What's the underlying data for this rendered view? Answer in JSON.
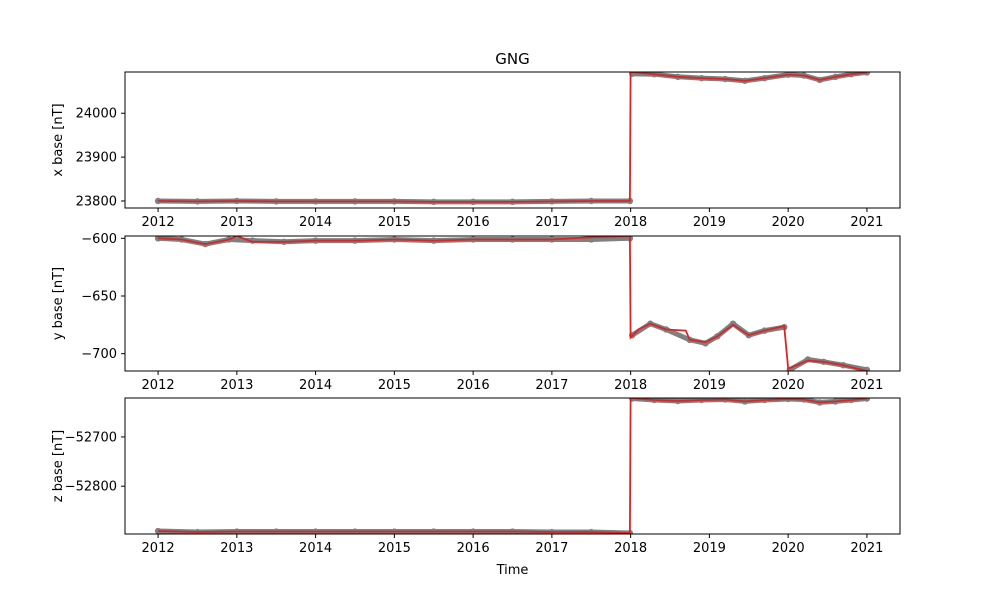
{
  "figure": {
    "title": "GNG",
    "xlabel": "Time"
  },
  "chart_data": [
    {
      "type": "line",
      "title": "GNG",
      "xlabel": "",
      "ylabel": "x base [nT]",
      "xlim": [
        2011.58,
        2021.42
      ],
      "ylim": [
        23784,
        24094
      ],
      "xticks": [
        "2012",
        "2013",
        "2014",
        "2015",
        "2016",
        "2017",
        "2018",
        "2019",
        "2020",
        "2021"
      ],
      "yticks": [
        23800,
        23900,
        24000
      ],
      "ytick_labels": [
        "23800",
        "23900",
        "24000"
      ],
      "colors": {
        "points": "#808080",
        "fit": "#d62728"
      },
      "series": [
        {
          "kind": "points",
          "x": [
            2012.0,
            2012.5,
            2013.0,
            2013.5,
            2014.0,
            2014.5,
            2015.0,
            2015.5,
            2016.0,
            2016.5,
            2017.0,
            2017.5,
            2017.99,
            2018.02,
            2018.3,
            2018.6,
            2018.9,
            2019.2,
            2019.45,
            2019.7,
            2020.0,
            2020.2,
            2020.4,
            2020.6,
            2020.8,
            2021.0
          ],
          "y": [
            23800,
            23799,
            23800,
            23799,
            23799,
            23799,
            23799,
            23798,
            23798,
            23798,
            23799,
            23800,
            23800,
            24090,
            24089,
            24083,
            24080,
            24078,
            24074,
            24080,
            24088,
            24086,
            24076,
            24083,
            24089,
            24093
          ]
        },
        {
          "kind": "fit",
          "x": [
            2012.0,
            2012.5,
            2013.0,
            2013.5,
            2014.0,
            2014.5,
            2015.0,
            2015.5,
            2016.0,
            2016.5,
            2017.0,
            2017.5,
            2017.99,
            2018.0,
            2018.3,
            2018.6,
            2018.9,
            2019.2,
            2019.45,
            2019.7,
            2020.0,
            2020.2,
            2020.4,
            2020.6,
            2020.8,
            2021.0
          ],
          "y": [
            23800,
            23799,
            23800,
            23799,
            23799,
            23799,
            23799,
            23798,
            23798,
            23798,
            23799,
            23800,
            23800,
            24094,
            24089,
            24083,
            24080,
            24078,
            24074,
            24080,
            24088,
            24086,
            24076,
            24083,
            24089,
            24093
          ]
        }
      ]
    },
    {
      "type": "line",
      "xlabel": "",
      "ylabel": "y base [nT]",
      "xlim": [
        2011.58,
        2021.42
      ],
      "ylim": [
        -715,
        -598
      ],
      "xticks": [
        "2012",
        "2013",
        "2014",
        "2015",
        "2016",
        "2017",
        "2018",
        "2019",
        "2020",
        "2021"
      ],
      "yticks": [
        -600,
        -650,
        -700
      ],
      "ytick_labels": [
        "−600",
        "−650",
        "−700"
      ],
      "colors": {
        "points": "#808080",
        "fit": "#d62728"
      },
      "series": [
        {
          "kind": "points",
          "x": [
            2012.0,
            2012.3,
            2012.6,
            2012.9,
            2013.2,
            2013.6,
            2014.0,
            2014.5,
            2015.0,
            2015.5,
            2016.0,
            2016.5,
            2017.0,
            2017.5,
            2017.99,
            2018.02,
            2018.25,
            2018.45,
            2018.75,
            2018.95,
            2019.1,
            2019.3,
            2019.5,
            2019.7,
            2019.95,
            2020.02,
            2020.25,
            2020.45,
            2020.7,
            2021.0
          ],
          "y": [
            -600,
            -601,
            -605,
            -601,
            -602,
            -603,
            -602,
            -602,
            -601,
            -602,
            -601,
            -601,
            -601,
            -601,
            -600,
            -684,
            -674,
            -679,
            -688,
            -691,
            -685,
            -674,
            -684,
            -680,
            -677,
            -714,
            -705,
            -707,
            -710,
            -714
          ]
        },
        {
          "kind": "fit",
          "x": [
            2012.0,
            2012.3,
            2012.6,
            2012.9,
            2013.0,
            2013.2,
            2013.6,
            2014.0,
            2014.5,
            2015.0,
            2015.5,
            2016.0,
            2016.5,
            2017.0,
            2017.5,
            2017.99,
            2018.0,
            2018.1,
            2018.25,
            2018.45,
            2018.7,
            2018.75,
            2018.95,
            2019.1,
            2019.3,
            2019.5,
            2019.7,
            2019.95,
            2020.0,
            2020.25,
            2020.45,
            2020.7,
            2021.0
          ],
          "y": [
            -600,
            -601,
            -605,
            -601,
            -598,
            -603,
            -603,
            -602,
            -602,
            -601,
            -602,
            -601,
            -601,
            -601,
            -599,
            -598,
            -686,
            -679,
            -674,
            -679,
            -680,
            -688,
            -690,
            -685,
            -675,
            -684,
            -680,
            -676,
            -713,
            -706,
            -707,
            -710,
            -715
          ]
        }
      ]
    },
    {
      "type": "line",
      "xlabel": "Time",
      "ylabel": "z base [nT]",
      "xlim": [
        2011.58,
        2021.42
      ],
      "ylim": [
        -52897,
        -52621
      ],
      "xticks": [
        "2012",
        "2013",
        "2014",
        "2015",
        "2016",
        "2017",
        "2018",
        "2019",
        "2020",
        "2021"
      ],
      "yticks": [
        -52700,
        -52800
      ],
      "ytick_labels": [
        "−52700",
        "−52800"
      ],
      "colors": {
        "points": "#808080",
        "fit": "#d62728"
      },
      "series": [
        {
          "kind": "points",
          "x": [
            2012.0,
            2012.5,
            2013.0,
            2013.5,
            2014.0,
            2014.5,
            2015.0,
            2015.5,
            2016.0,
            2016.5,
            2017.0,
            2017.5,
            2017.99,
            2018.02,
            2018.3,
            2018.6,
            2018.9,
            2019.2,
            2019.45,
            2019.7,
            2020.0,
            2020.2,
            2020.4,
            2020.6,
            2020.8,
            2021.0
          ],
          "y": [
            -52891,
            -52893,
            -52892,
            -52892,
            -52892,
            -52892,
            -52892,
            -52892,
            -52892,
            -52892,
            -52893,
            -52893,
            -52895,
            -52622,
            -52625,
            -52627,
            -52625,
            -52624,
            -52628,
            -52625,
            -52623,
            -52624,
            -52630,
            -52628,
            -52625,
            -52622
          ]
        },
        {
          "kind": "fit",
          "x": [
            2012.0,
            2012.5,
            2013.0,
            2013.5,
            2014.0,
            2014.5,
            2015.0,
            2015.5,
            2016.0,
            2016.5,
            2017.0,
            2017.5,
            2017.99,
            2018.0,
            2018.3,
            2018.6,
            2018.9,
            2019.2,
            2019.45,
            2019.7,
            2020.0,
            2020.2,
            2020.4,
            2020.6,
            2020.8,
            2021.0
          ],
          "y": [
            -52891,
            -52893,
            -52892,
            -52892,
            -52892,
            -52892,
            -52892,
            -52892,
            -52892,
            -52892,
            -52893,
            -52893,
            -52895,
            -52621,
            -52625,
            -52627,
            -52625,
            -52624,
            -52628,
            -52625,
            -52623,
            -52624,
            -52630,
            -52628,
            -52625,
            -52622
          ]
        }
      ]
    }
  ]
}
